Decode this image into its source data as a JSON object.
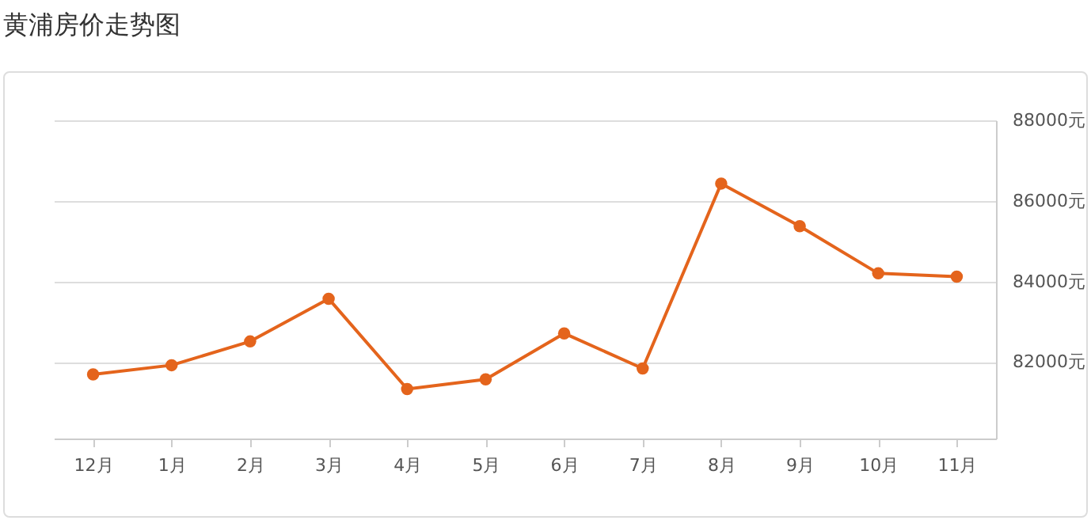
{
  "chart_data": {
    "type": "line",
    "title": "黄浦房价走势图",
    "categories": [
      "12月",
      "1月",
      "2月",
      "3月",
      "4月",
      "5月",
      "6月",
      "7月",
      "8月",
      "9月",
      "10月",
      "11月"
    ],
    "series": [
      {
        "color": "#e4641c",
        "values": [
          81690,
          81920,
          82510,
          83570,
          81330,
          81570,
          82710,
          81840,
          86430,
          85370,
          84200,
          84120
        ]
      }
    ],
    "ylim": [
      80100,
      88000
    ],
    "yticks": [
      {
        "value": 82000,
        "label": "82000元"
      },
      {
        "value": 84000,
        "label": "84000元"
      },
      {
        "value": 86000,
        "label": "86000元"
      },
      {
        "value": 88000,
        "label": "88000元"
      }
    ],
    "grid": "y",
    "marker": "circle",
    "line_style": "solid",
    "legend": false
  }
}
